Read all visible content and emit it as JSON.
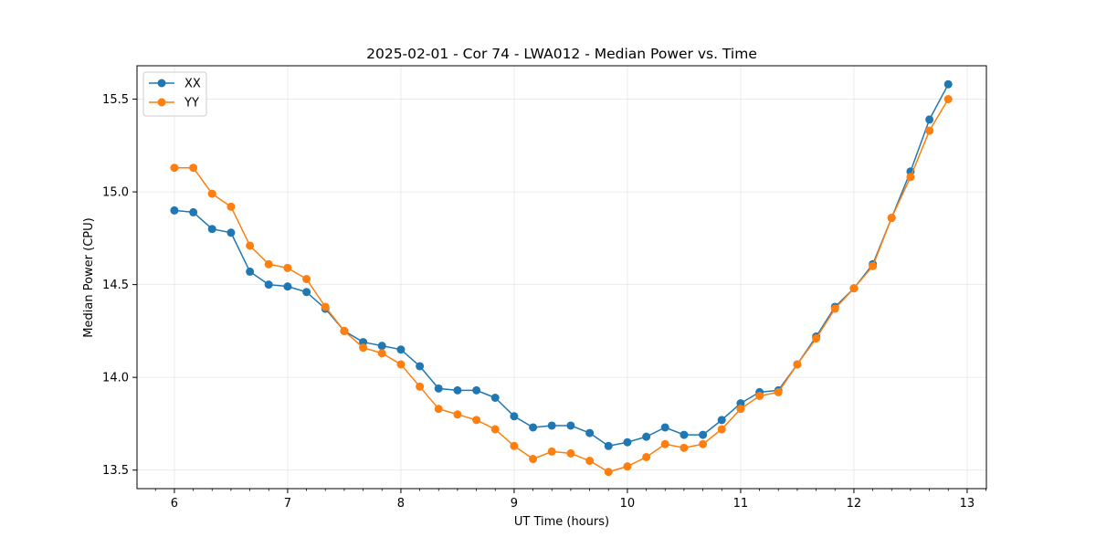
{
  "chart_data": {
    "type": "line",
    "title": "2025-02-01 - Cor 74 - LWA012 - Median Power vs. Time",
    "xlabel": "UT Time (hours)",
    "ylabel": "Median Power (CPU)",
    "xlim": [
      5.67,
      13.17
    ],
    "ylim": [
      13.4,
      15.68
    ],
    "x_ticks": [
      6,
      7,
      8,
      9,
      10,
      11,
      12,
      13
    ],
    "x_tick_labels": [
      "6",
      "7",
      "8",
      "9",
      "10",
      "11",
      "12",
      "13"
    ],
    "y_ticks": [
      13.5,
      14.0,
      14.5,
      15.0,
      15.5
    ],
    "y_tick_labels": [
      "13.5",
      "14.0",
      "14.5",
      "15.0",
      "15.5"
    ],
    "grid": true,
    "legend_position": "upper-left",
    "x": [
      6.0,
      6.167,
      6.333,
      6.5,
      6.667,
      6.833,
      7.0,
      7.167,
      7.333,
      7.5,
      7.667,
      7.833,
      8.0,
      8.167,
      8.333,
      8.5,
      8.667,
      8.833,
      9.0,
      9.167,
      9.333,
      9.5,
      9.667,
      9.833,
      10.0,
      10.167,
      10.333,
      10.5,
      10.667,
      10.833,
      11.0,
      11.167,
      11.333,
      11.5,
      11.667,
      11.833,
      12.0,
      12.167,
      12.333,
      12.5,
      12.667,
      12.833
    ],
    "series": [
      {
        "name": "XX",
        "color": "#1f77b4",
        "values": [
          14.9,
          14.89,
          14.8,
          14.78,
          14.57,
          14.5,
          14.49,
          14.46,
          14.37,
          14.25,
          14.19,
          14.17,
          14.15,
          14.06,
          13.94,
          13.93,
          13.93,
          13.89,
          13.79,
          13.73,
          13.74,
          13.74,
          13.7,
          13.63,
          13.65,
          13.68,
          13.73,
          13.69,
          13.69,
          13.77,
          13.86,
          13.92,
          13.93,
          14.07,
          14.22,
          14.38,
          14.48,
          14.61,
          14.86,
          15.11,
          15.39,
          15.58
        ]
      },
      {
        "name": "YY",
        "color": "#ff7f0e",
        "values": [
          15.13,
          15.13,
          14.99,
          14.92,
          14.71,
          14.61,
          14.59,
          14.53,
          14.38,
          14.25,
          14.16,
          14.13,
          14.07,
          13.95,
          13.83,
          13.8,
          13.77,
          13.72,
          13.63,
          13.56,
          13.6,
          13.59,
          13.55,
          13.49,
          13.52,
          13.57,
          13.64,
          13.62,
          13.64,
          13.72,
          13.83,
          13.9,
          13.92,
          14.07,
          14.21,
          14.37,
          14.48,
          14.6,
          14.86,
          15.08,
          15.33,
          15.5
        ]
      }
    ]
  }
}
